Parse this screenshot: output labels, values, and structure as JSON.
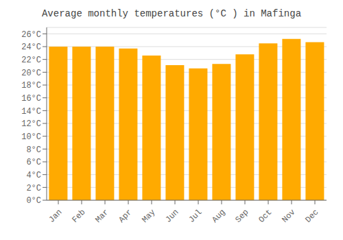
{
  "chart_data": {
    "type": "bar",
    "title": "Average monthly temperatures (°C ) in Mafinga",
    "categories": [
      "Jan",
      "Feb",
      "Mar",
      "Apr",
      "May",
      "Jun",
      "Jul",
      "Aug",
      "Sep",
      "Oct",
      "Nov",
      "Dec"
    ],
    "values": [
      24.0,
      24.0,
      24.0,
      23.7,
      22.6,
      21.1,
      20.6,
      21.3,
      22.8,
      24.5,
      25.2,
      24.7
    ],
    "color": "#FFAA00",
    "ylim": [
      0,
      27
    ],
    "yticks": [
      {
        "value": 0,
        "label": "0°C"
      },
      {
        "value": 2,
        "label": "2°C"
      },
      {
        "value": 4,
        "label": "4°C"
      },
      {
        "value": 6,
        "label": "6°C"
      },
      {
        "value": 8,
        "label": "8°C"
      },
      {
        "value": 10,
        "label": "10°C"
      },
      {
        "value": 12,
        "label": "12°C"
      },
      {
        "value": 14,
        "label": "14°C"
      },
      {
        "value": 16,
        "label": "16°C"
      },
      {
        "value": 18,
        "label": "18°C"
      },
      {
        "value": 20,
        "label": "20°C"
      },
      {
        "value": 22,
        "label": "22°C"
      },
      {
        "value": 24,
        "label": "24°C"
      },
      {
        "value": 26,
        "label": "26°C"
      }
    ],
    "grid": true
  }
}
